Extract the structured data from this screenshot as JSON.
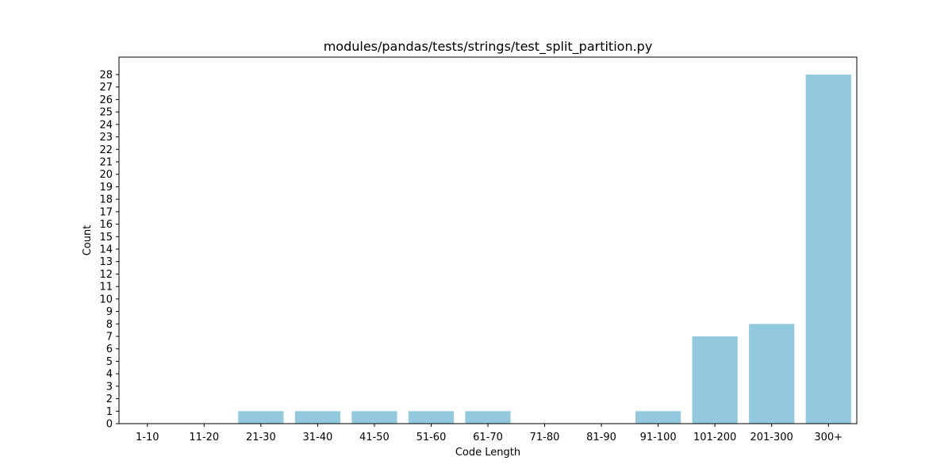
{
  "chart_data": {
    "type": "bar",
    "title": "modules/pandas/tests/strings/test_split_partition.py",
    "xlabel": "Code Length",
    "ylabel": "Count",
    "categories": [
      "1-10",
      "11-20",
      "21-30",
      "31-40",
      "41-50",
      "51-60",
      "61-70",
      "71-80",
      "81-90",
      "91-100",
      "101-200",
      "201-300",
      "300+"
    ],
    "values": [
      0,
      0,
      1,
      1,
      1,
      1,
      1,
      0,
      0,
      1,
      7,
      8,
      28
    ],
    "ylim": [
      0,
      29.4
    ],
    "yticks": [
      0,
      1,
      2,
      3,
      4,
      5,
      6,
      7,
      8,
      9,
      10,
      11,
      12,
      13,
      14,
      15,
      16,
      17,
      18,
      19,
      20,
      21,
      22,
      23,
      24,
      25,
      26,
      27,
      28
    ],
    "bar_color": "#92c9de",
    "grid": false,
    "legend": "none"
  }
}
